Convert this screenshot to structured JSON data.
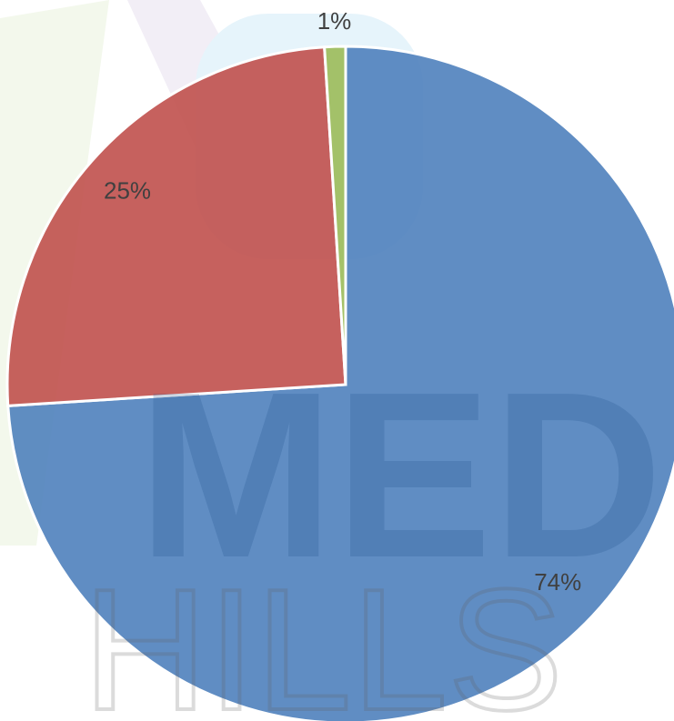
{
  "chart_data": {
    "type": "pie",
    "categories": [
      null,
      null,
      null
    ],
    "values": [
      74,
      25,
      1
    ],
    "value_labels": [
      "74%",
      "25%",
      "1%"
    ],
    "colors": [
      "#4f81bd",
      "#c0504d",
      "#9bbb59"
    ]
  },
  "watermark": [
    "MED",
    "HILLS"
  ]
}
